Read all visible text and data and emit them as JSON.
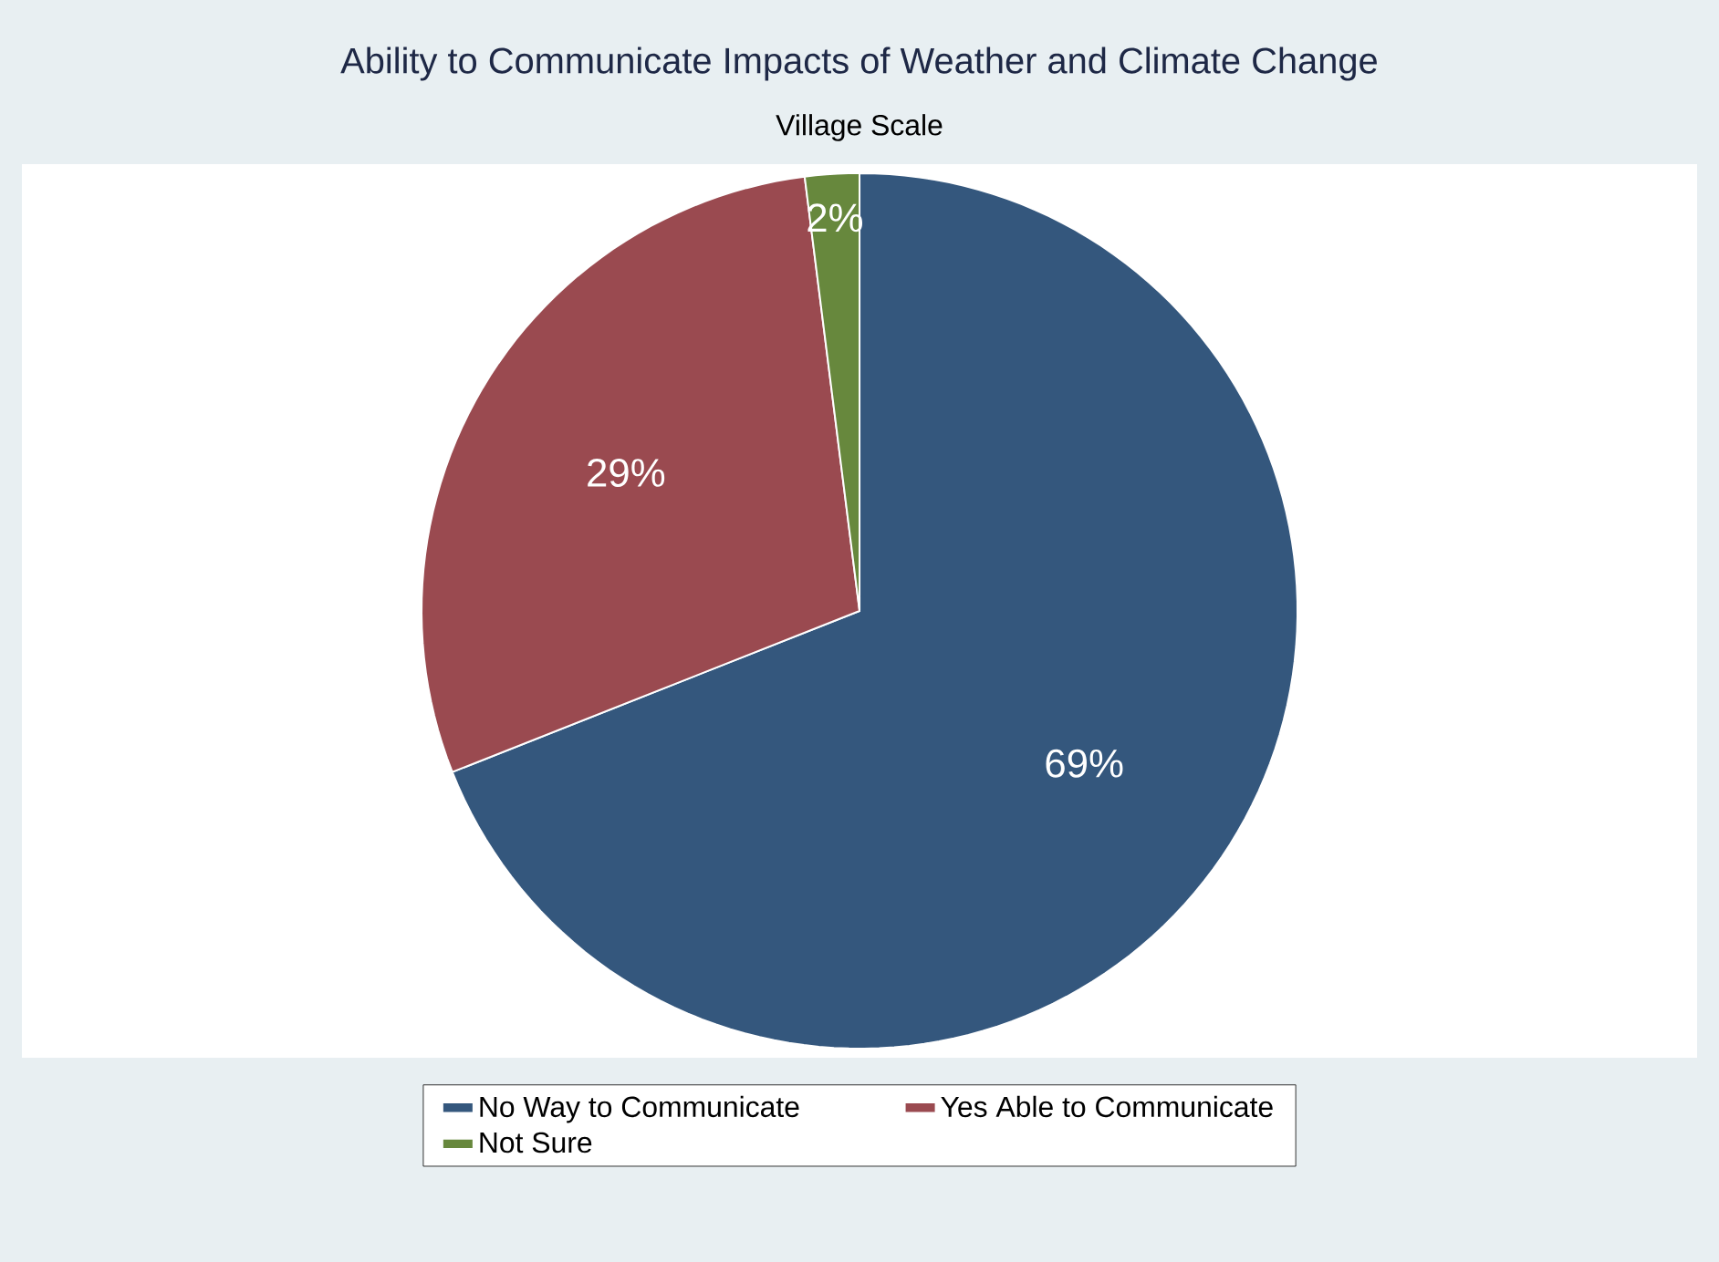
{
  "chart_data": {
    "type": "pie",
    "title": "Ability to Communicate Impacts of Weather and Climate Change",
    "subtitle": "Village Scale",
    "categories": [
      "No Way to Communicate",
      "Yes Able to Communicate",
      "Not Sure"
    ],
    "values": [
      69,
      29,
      2
    ],
    "colors": [
      "#34577d",
      "#9a4a50",
      "#67883d"
    ],
    "value_labels": [
      "69%",
      "29%",
      "2%"
    ],
    "legend": "bottom"
  }
}
